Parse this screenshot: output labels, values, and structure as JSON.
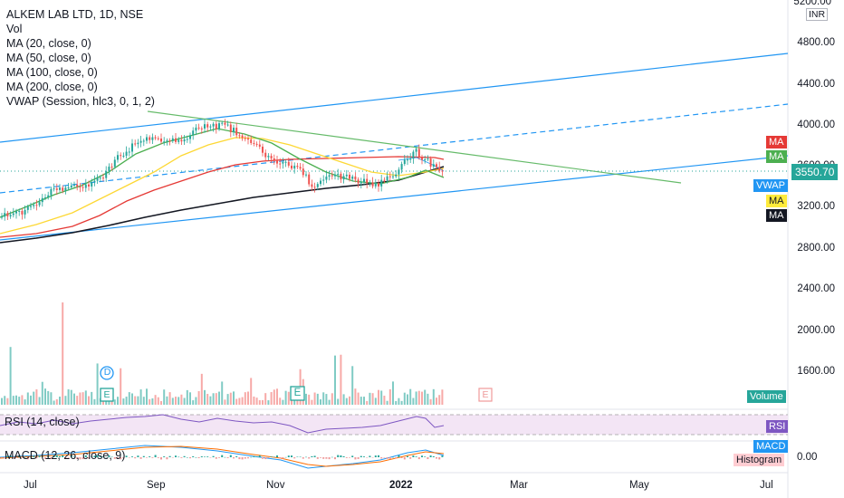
{
  "legend": {
    "title": "ALKEM LAB LTD, 1D, NSE",
    "vol": "Vol",
    "ma20": "MA (20, close, 0)",
    "ma50": "MA (50, close, 0)",
    "ma100": "MA (100, close, 0)",
    "ma200": "MA (200, close, 0)",
    "vwap": "VWAP (Session, hlc3, 0, 1, 2)"
  },
  "price_axis": {
    "currency": "INR",
    "top_label": "5200.00",
    "labels": [
      "4800.00",
      "4400.00",
      "4000.00",
      "3600.00",
      "3200.00",
      "2800.00",
      "2400.00",
      "2000.00",
      "1600.00"
    ]
  },
  "last_price": "3550.70",
  "tags": {
    "ma_red": "MA",
    "ma_green": "MA",
    "vwap": "VWAP",
    "ma_yellow": "MA",
    "ma_black": "MA",
    "volume": "Volume",
    "rsi": "RSI",
    "macd": "MACD",
    "histogram": "Histogram",
    "macd_zero": "0.00"
  },
  "panes": {
    "rsi_label": "RSI (14, close)",
    "macd_label": "MACD (12, 26, close, 9)"
  },
  "events": {
    "dividend": "D",
    "earnings": "E"
  },
  "time_axis": [
    "Jul",
    "Sep",
    "Nov",
    "2022",
    "Mar",
    "May",
    "Jul"
  ],
  "colors": {
    "up": "#26a69a",
    "down": "#ef5350",
    "trend_blue": "#2196f3",
    "ma20": "#4caf50",
    "ma50": "#ffeb3b",
    "ma100": "#e53935",
    "ma200": "#131722",
    "vwap_tag": "#2196f3",
    "rsi_line": "#7e57c2",
    "rsi_bg": "#f3e5f5",
    "macd_line": "#2196f3",
    "signal_line": "#ff6d00"
  }
}
